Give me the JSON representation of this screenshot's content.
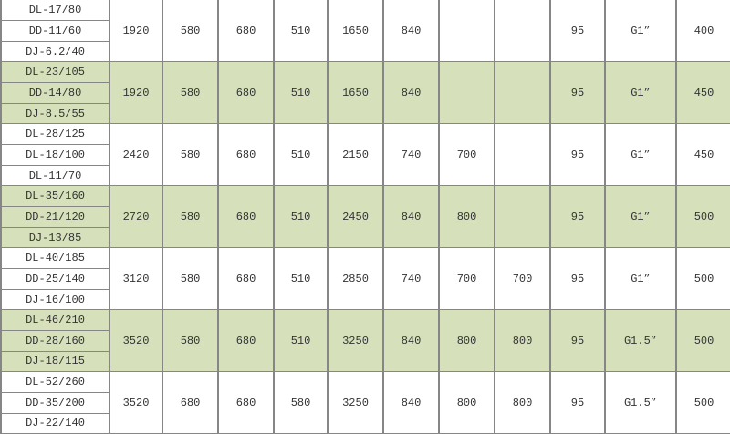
{
  "table": {
    "row_groups": [
      {
        "shaded": false,
        "models": [
          "DL-17/80",
          "DD-11/60",
          "DJ-6.2/40"
        ],
        "values": [
          "1920",
          "580",
          "680",
          "510",
          "1650",
          "840",
          "",
          "",
          "95",
          "G1”",
          "400"
        ]
      },
      {
        "shaded": true,
        "models": [
          "DL-23/105",
          "DD-14/80",
          "DJ-8.5/55"
        ],
        "values": [
          "1920",
          "580",
          "680",
          "510",
          "1650",
          "840",
          "",
          "",
          "95",
          "G1”",
          "450"
        ]
      },
      {
        "shaded": false,
        "models": [
          "DL-28/125",
          "DL-18/100",
          "DL-11/70"
        ],
        "values": [
          "2420",
          "580",
          "680",
          "510",
          "2150",
          "740",
          "700",
          "",
          "95",
          "G1”",
          "450"
        ]
      },
      {
        "shaded": true,
        "models": [
          "DL-35/160",
          "DD-21/120",
          "DJ-13/85"
        ],
        "values": [
          "2720",
          "580",
          "680",
          "510",
          "2450",
          "840",
          "800",
          "",
          "95",
          "G1”",
          "500"
        ]
      },
      {
        "shaded": false,
        "models": [
          "DL-40/185",
          "DD-25/140",
          "DJ-16/100"
        ],
        "values": [
          "3120",
          "580",
          "680",
          "510",
          "2850",
          "740",
          "700",
          "700",
          "95",
          "G1”",
          "500"
        ]
      },
      {
        "shaded": true,
        "models": [
          "DL-46/210",
          "DD-28/160",
          "DJ-18/115"
        ],
        "values": [
          "3520",
          "580",
          "680",
          "510",
          "3250",
          "840",
          "800",
          "800",
          "95",
          "G1.5”",
          "500"
        ]
      },
      {
        "shaded": false,
        "models": [
          "DL-52/260",
          "DD-35/200",
          "DJ-22/140"
        ],
        "values": [
          "3520",
          "680",
          "680",
          "580",
          "3250",
          "840",
          "800",
          "800",
          "95",
          "G1.5”",
          "500"
        ]
      }
    ]
  },
  "colors": {
    "shaded_row_bg": "#d6e1bc",
    "grid_line": "#868686",
    "text": "#333333"
  }
}
